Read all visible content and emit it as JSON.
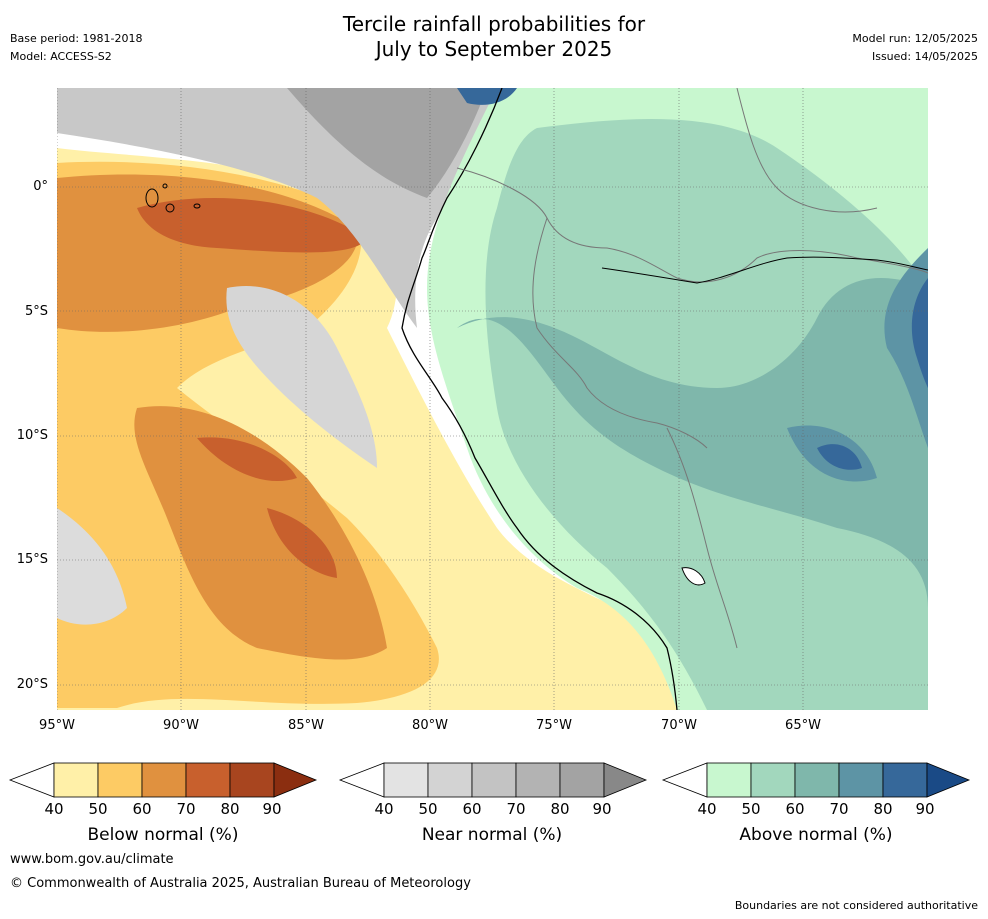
{
  "header": {
    "title_line1": "Tercile rainfall probabilities for",
    "title_line2": "July to September 2025",
    "base_period": "Base period: 1981-2018",
    "model": "Model: ACCESS-S2",
    "model_run": "Model run: 12/05/2025",
    "issued": "Issued: 14/05/2025"
  },
  "map": {
    "lat_labels": [
      "0°",
      "5°S",
      "10°S",
      "15°S",
      "20°S"
    ],
    "lon_labels": [
      "95°W",
      "90°W",
      "85°W",
      "80°W",
      "75°W",
      "70°W",
      "65°W"
    ]
  },
  "legend": {
    "below": {
      "label": "Below normal (%)",
      "ticks": [
        "40",
        "50",
        "60",
        "70",
        "80",
        "90"
      ],
      "colors": [
        "#fff0a8",
        "#fdcb64",
        "#e0913f",
        "#c8602d",
        "#a8451f",
        "#8b2e10"
      ]
    },
    "near": {
      "label": "Near normal (%)",
      "ticks": [
        "40",
        "50",
        "60",
        "70",
        "80",
        "90"
      ],
      "colors": [
        "#e3e3e3",
        "#d3d3d3",
        "#c3c3c3",
        "#b3b3b3",
        "#a3a3a3",
        "#888888"
      ]
    },
    "above": {
      "label": "Above normal (%)",
      "ticks": [
        "40",
        "50",
        "60",
        "70",
        "80",
        "90"
      ],
      "colors": [
        "#c8f7cf",
        "#a2d7bd",
        "#7fb7ab",
        "#5d94a5",
        "#36689a",
        "#1a4a86"
      ]
    }
  },
  "footer": {
    "website": "www.bom.gov.au/climate",
    "copyright": "© Commonwealth of Australia 2025, Australian Bureau of Meteorology",
    "disclaimer": "Boundaries are not considered authoritative"
  }
}
